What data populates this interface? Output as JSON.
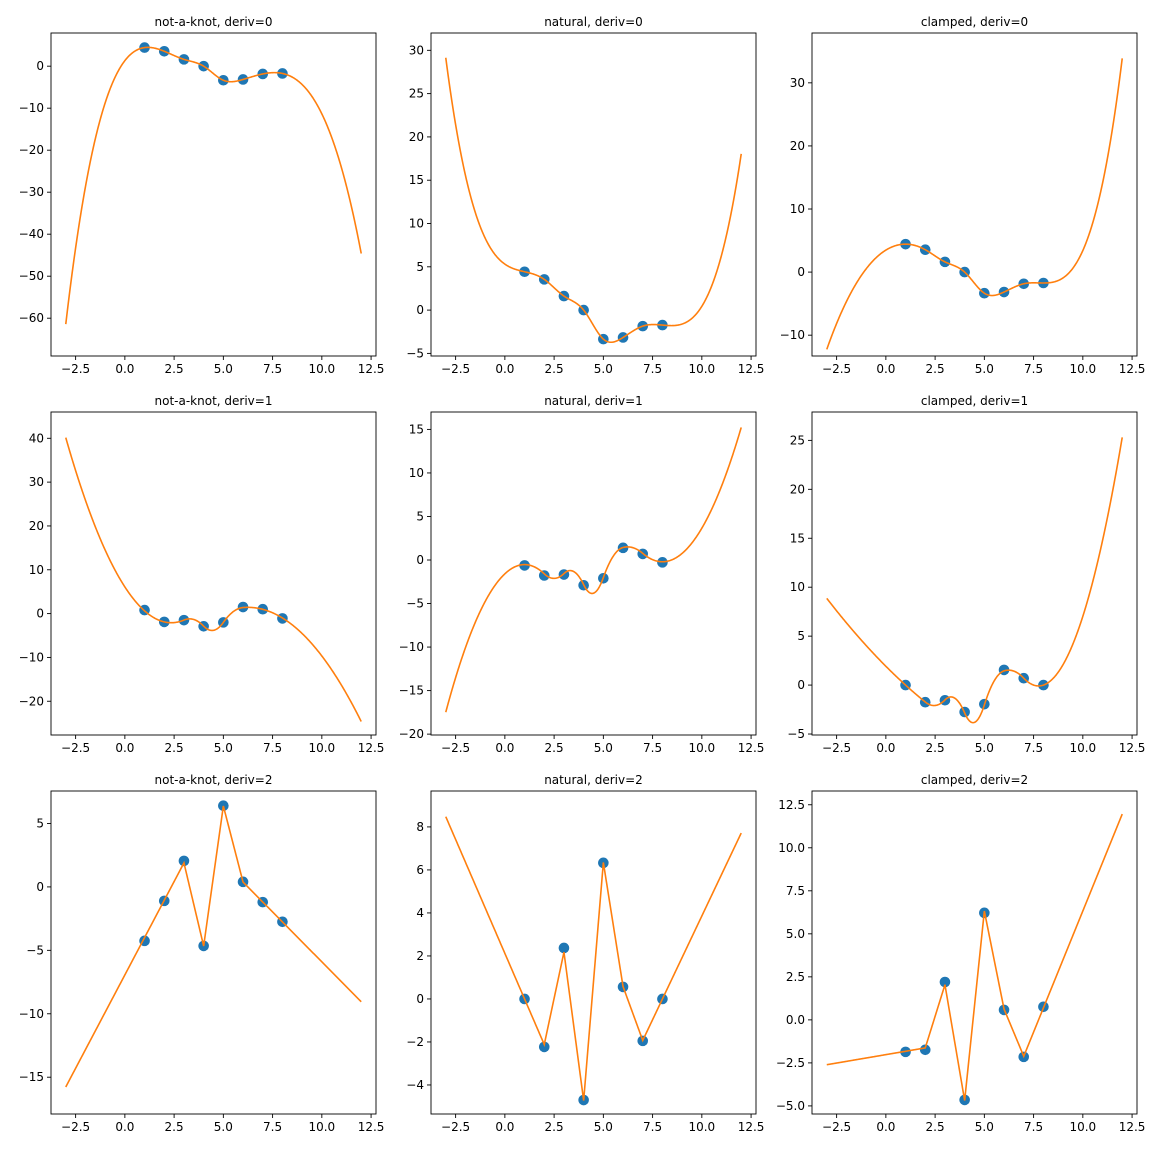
{
  "colors": {
    "points": "#1f77b4",
    "curve": "#ff7f0e"
  },
  "chart_data": {
    "knots_x": [
      1,
      2,
      3,
      4,
      5,
      6,
      7,
      8
    ],
    "knots_y": [
      4.43,
      3.55,
      1.62,
      0,
      -3.35,
      -3.16,
      -1.85,
      -1.73
    ],
    "curve_x_range": [
      -3,
      12
    ],
    "xlim": [
      -3.75,
      12.75
    ],
    "x_ticks": [
      -2.5,
      0,
      2.5,
      5,
      7.5,
      10,
      12.5
    ],
    "x_tick_labels": [
      "−2.5",
      "0.0",
      "2.5",
      "5.0",
      "7.5",
      "10.0",
      "12.5"
    ],
    "grid": false,
    "panels": [
      {
        "type": "line+scatter",
        "title": "not-a-knot, deriv=0",
        "bc": "not-a-knot",
        "deriv": 0,
        "ylim": [
          -69.0,
          7.9
        ],
        "y_ticks": [
          0,
          -10,
          -20,
          -30,
          -40,
          -50,
          -60
        ],
        "y_tick_labels": [
          "0",
          "−10",
          "−20",
          "−30",
          "−40",
          "−50",
          "−60"
        ],
        "points_y": [
          4.43,
          3.55,
          1.62,
          0,
          -3.35,
          -3.16,
          -1.85,
          -1.73
        ]
      },
      {
        "type": "line+scatter",
        "title": "natural, deriv=0",
        "bc": "natural",
        "deriv": 0,
        "ylim": [
          -5.3,
          32.0
        ],
        "y_ticks": [
          30,
          25,
          20,
          15,
          10,
          5,
          0,
          -5
        ],
        "y_tick_labels": [
          "30",
          "25",
          "20",
          "15",
          "10",
          "5",
          "0",
          "−5"
        ],
        "points_y": [
          4.43,
          3.55,
          1.62,
          0,
          -3.35,
          -3.16,
          -1.85,
          -1.73
        ]
      },
      {
        "type": "line+scatter",
        "title": "clamped, deriv=0",
        "bc": "clamped",
        "deriv": 0,
        "ylim": [
          -13.3,
          37.9
        ],
        "y_ticks": [
          30,
          20,
          10,
          0,
          -10
        ],
        "y_tick_labels": [
          "30",
          "20",
          "10",
          "0",
          "−10"
        ],
        "points_y": [
          4.43,
          3.55,
          1.62,
          0,
          -3.35,
          -3.16,
          -1.85,
          -1.73
        ]
      },
      {
        "type": "line+scatter",
        "title": "not-a-knot, deriv=1",
        "bc": "not-a-knot",
        "deriv": 1,
        "ylim": [
          -27.7,
          46.0
        ],
        "y_ticks": [
          40,
          30,
          20,
          10,
          0,
          -10,
          -20
        ],
        "y_tick_labels": [
          "40",
          "30",
          "20",
          "10",
          "0",
          "−10",
          "−20"
        ],
        "points_y": [
          0.8,
          -1.9,
          -1.5,
          -2.9,
          -2.0,
          1.5,
          1.0,
          -1.1
        ]
      },
      {
        "type": "line+scatter",
        "title": "natural, deriv=1",
        "bc": "natural",
        "deriv": 1,
        "ylim": [
          -20.1,
          17.0
        ],
        "y_ticks": [
          15,
          10,
          5,
          0,
          -5,
          -10,
          -15,
          -20
        ],
        "y_tick_labels": [
          "15",
          "10",
          "5",
          "0",
          "−5",
          "−10",
          "−15",
          "−20"
        ],
        "points_y": [
          -0.62,
          -1.78,
          -1.67,
          -2.9,
          -2.1,
          1.4,
          0.7,
          -0.27
        ]
      },
      {
        "type": "line+scatter",
        "title": "clamped, deriv=1",
        "bc": "clamped",
        "deriv": 1,
        "ylim": [
          -5.1,
          27.9
        ],
        "y_ticks": [
          25,
          20,
          15,
          10,
          5,
          0,
          -5
        ],
        "y_tick_labels": [
          "25",
          "20",
          "15",
          "10",
          "5",
          "0",
          "−5"
        ],
        "points_y": [
          0,
          -1.75,
          -1.55,
          -2.75,
          -1.95,
          1.55,
          0.7,
          0
        ]
      },
      {
        "type": "line+scatter",
        "title": "not-a-knot, deriv=2",
        "bc": "not-a-knot",
        "deriv": 2,
        "ylim": [
          -17.9,
          7.56
        ],
        "y_ticks": [
          5,
          0,
          -5,
          -10,
          -15
        ],
        "y_tick_labels": [
          "5",
          "0",
          "−5",
          "−10",
          "−15"
        ],
        "points_y": [
          -4.25,
          -1.1,
          2.05,
          -4.65,
          6.4,
          0.4,
          -1.2,
          -2.75
        ]
      },
      {
        "type": "line+scatter",
        "title": "natural, deriv=2",
        "bc": "natural",
        "deriv": 2,
        "ylim": [
          -5.35,
          9.67
        ],
        "y_ticks": [
          8,
          6,
          4,
          2,
          0,
          -2,
          -4
        ],
        "y_tick_labels": [
          "8",
          "6",
          "4",
          "2",
          "0",
          "−2",
          "−4"
        ],
        "points_y": [
          0,
          -2.23,
          2.37,
          -4.7,
          6.33,
          0.56,
          -1.95,
          0
        ]
      },
      {
        "type": "line+scatter",
        "title": "clamped, deriv=2",
        "bc": "clamped",
        "deriv": 2,
        "ylim": [
          -5.47,
          13.3
        ],
        "y_ticks": [
          12.5,
          10,
          7.5,
          5,
          2.5,
          0,
          -2.5,
          -5
        ],
        "y_tick_labels": [
          "12.5",
          "10.0",
          "7.5",
          "5.0",
          "2.5",
          "0.0",
          "−2.5",
          "−5.0"
        ],
        "points_y": [
          -1.86,
          -1.74,
          2.2,
          -4.65,
          6.22,
          0.58,
          -2.15,
          0.76
        ]
      }
    ]
  }
}
